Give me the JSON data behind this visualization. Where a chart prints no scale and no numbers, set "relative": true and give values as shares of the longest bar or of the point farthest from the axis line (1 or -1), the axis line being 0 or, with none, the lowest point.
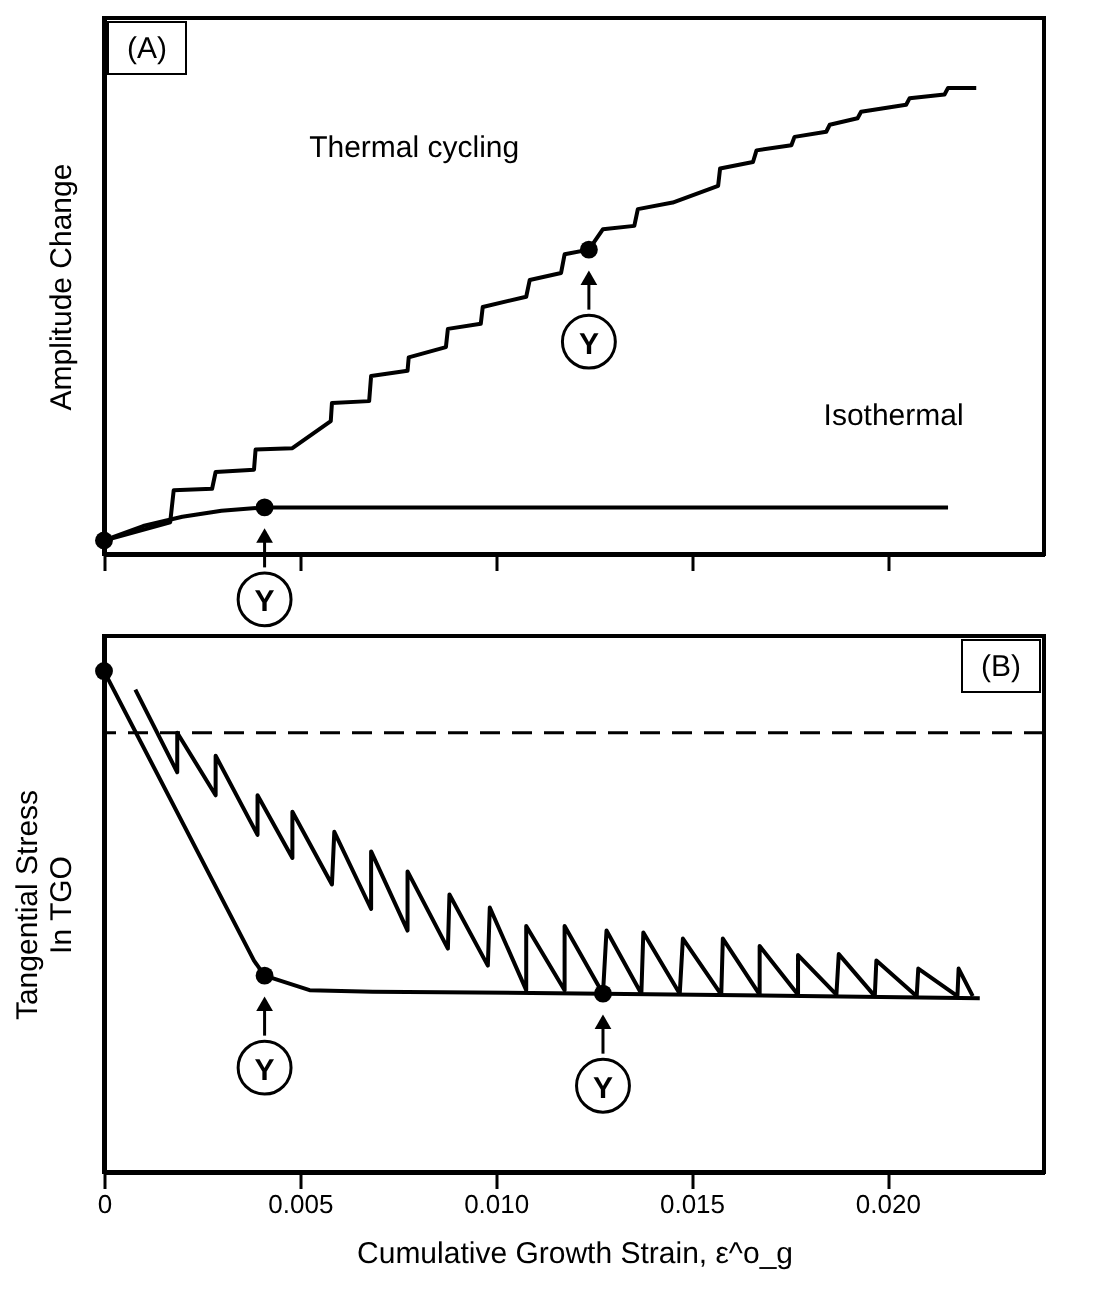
{
  "chart_data": [
    {
      "type": "line",
      "relative": true,
      "ylabel": "Amplitude Change",
      "xlim": [
        0,
        0.024
      ],
      "xticks": [
        0,
        0.005,
        0.01,
        0.015,
        0.02
      ],
      "tick_labels": false,
      "grid": false,
      "series": [
        {
          "color": "#000000",
          "line_style": "solid",
          "x": [
            0,
            0.00169,
            0.00178,
            0.00276,
            0.00285,
            0.00383,
            0.00387,
            0.00481,
            0.00579,
            0.00582,
            0.00677,
            0.00682,
            0.00775,
            0.00778,
            0.00873,
            0.00878,
            0.00962,
            0.00967,
            0.01078,
            0.01087,
            0.01167,
            0.01176,
            0.01238,
            0.01274,
            0.01354,
            0.01363,
            0.01452,
            0.01568,
            0.01573,
            0.01657,
            0.01666,
            0.01755,
            0.01763,
            0.01844,
            0.01853,
            0.01924,
            0.01933,
            0.02048,
            0.02057,
            0.02146,
            0.02155,
            0.02227
          ],
          "values": [
            0.029,
            0.068,
            0.137,
            0.14,
            0.176,
            0.181,
            0.224,
            0.227,
            0.285,
            0.324,
            0.328,
            0.382,
            0.393,
            0.422,
            0.444,
            0.483,
            0.494,
            0.53,
            0.552,
            0.588,
            0.603,
            0.643,
            0.653,
            0.697,
            0.704,
            0.74,
            0.754,
            0.79,
            0.827,
            0.841,
            0.866,
            0.877,
            0.895,
            0.906,
            0.921,
            0.935,
            0.949,
            0.964,
            0.978,
            0.986,
            1.0,
            1.0
          ]
        },
        {
          "color": "#000000",
          "line_style": "solid",
          "x": [
            0,
            0.001,
            0.002,
            0.003,
            0.0041,
            0.02155
          ],
          "values": [
            0.029,
            0.06,
            0.08,
            0.093,
            0.1,
            0.1
          ]
        },
        {
          "type": "scatter",
          "color": "#000000",
          "marker": "circle",
          "x": [
            0,
            0.0041,
            0.01238
          ],
          "values": [
            0.029,
            0.1,
            0.653
          ]
        }
      ],
      "annotations": [
        "(A)",
        "Thermal cycling",
        "Isothermal",
        {
          "text": "Y",
          "x": 0.0041,
          "y": 0.1
        },
        {
          "text": "Y",
          "x": 0.01238,
          "y": 0.653
        }
      ]
    },
    {
      "type": "line",
      "relative": true,
      "ylabel": "Tangential Stress\nIn TGO",
      "xlabel": "Cumulative Growth Strain, ε^o_g",
      "xlim": [
        0,
        0.024
      ],
      "xticks": [
        0,
        {
          "value": 0.005,
          "label": "0.005"
        },
        {
          "value": 0.01,
          "label": "0.010"
        },
        {
          "value": 0.015,
          "label": "0.015"
        },
        {
          "value": 0.02,
          "label": "0.020"
        }
      ],
      "tick_labels": "x",
      "grid": false,
      "ref_lines": [
        {
          "axis": "y",
          "value": 0.877,
          "line_style": "dashed",
          "color": "#000000"
        }
      ],
      "series": [
        {
          "color": "#000000",
          "line_style": "solid",
          "x": [
            0.0008,
            0.00187,
            0.00187,
            0.00285,
            0.00285,
            0.00392,
            0.00392,
            0.00481,
            0.00481,
            0.00582,
            0.00588,
            0.00682,
            0.00682,
            0.00775,
            0.00775,
            0.00878,
            0.00882,
            0.0098,
            0.00985,
            0.01078,
            0.01078,
            0.01176,
            0.01176,
            0.01274,
            0.01283,
            0.01372,
            0.01377,
            0.0147,
            0.01478,
            0.01576,
            0.0158,
            0.01674,
            0.01674,
            0.01772,
            0.01772,
            0.0187,
            0.01876,
            0.01968,
            0.01972,
            0.02075,
            0.02079,
            0.02179,
            0.02182,
            0.02218
          ],
          "values": [
            0.963,
            0.798,
            0.877,
            0.752,
            0.831,
            0.673,
            0.752,
            0.627,
            0.719,
            0.574,
            0.679,
            0.525,
            0.64,
            0.482,
            0.6,
            0.446,
            0.554,
            0.412,
            0.528,
            0.363,
            0.491,
            0.363,
            0.491,
            0.356,
            0.482,
            0.356,
            0.478,
            0.356,
            0.466,
            0.354,
            0.466,
            0.354,
            0.451,
            0.354,
            0.433,
            0.354,
            0.435,
            0.351,
            0.422,
            0.351,
            0.406,
            0.351,
            0.406,
            0.351
          ]
        },
        {
          "color": "#000000",
          "line_style": "solid",
          "x": [
            0,
            0.00383,
            0.0041,
            0.00525,
            0.00686,
            0.01274,
            0.02236
          ],
          "values": [
            1.0,
            0.422,
            0.392,
            0.363,
            0.36,
            0.356,
            0.347
          ]
        },
        {
          "type": "scatter",
          "color": "#000000",
          "marker": "circle",
          "x": [
            0,
            0.0041,
            0.01274
          ],
          "values": [
            1.0,
            0.392,
            0.356
          ]
        }
      ],
      "annotations": [
        "(B)",
        {
          "text": "Y",
          "x": 0.0041,
          "y": 0.392
        },
        {
          "text": "Y",
          "x": 0.01274,
          "y": 0.356
        }
      ]
    }
  ]
}
